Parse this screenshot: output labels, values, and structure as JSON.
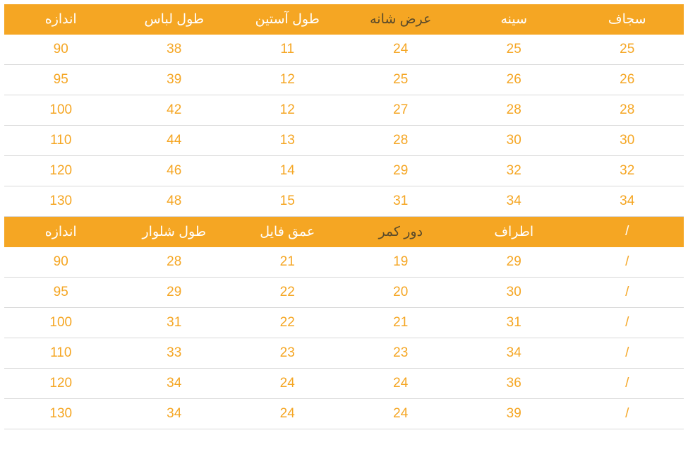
{
  "colors": {
    "header_bg": "#f5a623",
    "header_text_white": "#ffffff",
    "header_text_dark": "#5a4a2a",
    "cell_text": "#f5a623",
    "row_border": "#d9d9d9",
    "background": "#ffffff"
  },
  "table1": {
    "headers": [
      {
        "label": "اندازه",
        "dark": false
      },
      {
        "label": "طول لباس",
        "dark": false
      },
      {
        "label": "طول آستین",
        "dark": false
      },
      {
        "label": "عرض شانه",
        "dark": true
      },
      {
        "label": "سینه",
        "dark": false
      },
      {
        "label": "سجاف",
        "dark": false
      }
    ],
    "rows": [
      [
        "90",
        "38",
        "11",
        "24",
        "25",
        "25"
      ],
      [
        "95",
        "39",
        "12",
        "25",
        "26",
        "26"
      ],
      [
        "100",
        "42",
        "12",
        "27",
        "28",
        "28"
      ],
      [
        "110",
        "44",
        "13",
        "28",
        "30",
        "30"
      ],
      [
        "120",
        "46",
        "14",
        "29",
        "32",
        "32"
      ],
      [
        "130",
        "48",
        "15",
        "31",
        "34",
        "34"
      ]
    ]
  },
  "table2": {
    "headers": [
      {
        "label": "اندازه",
        "dark": false
      },
      {
        "label": "طول شلوار",
        "dark": false
      },
      {
        "label": "عمق فایل",
        "dark": false
      },
      {
        "label": "دور کمر",
        "dark": true
      },
      {
        "label": "اطراف",
        "dark": false
      },
      {
        "label": "/",
        "dark": false
      }
    ],
    "rows": [
      [
        "90",
        "28",
        "21",
        "19",
        "29",
        "/"
      ],
      [
        "95",
        "29",
        "22",
        "20",
        "30",
        "/"
      ],
      [
        "100",
        "31",
        "22",
        "21",
        "31",
        "/"
      ],
      [
        "110",
        "33",
        "23",
        "23",
        "34",
        "/"
      ],
      [
        "120",
        "34",
        "24",
        "24",
        "36",
        "/"
      ],
      [
        "130",
        "34",
        "24",
        "24",
        "39",
        "/"
      ]
    ]
  }
}
